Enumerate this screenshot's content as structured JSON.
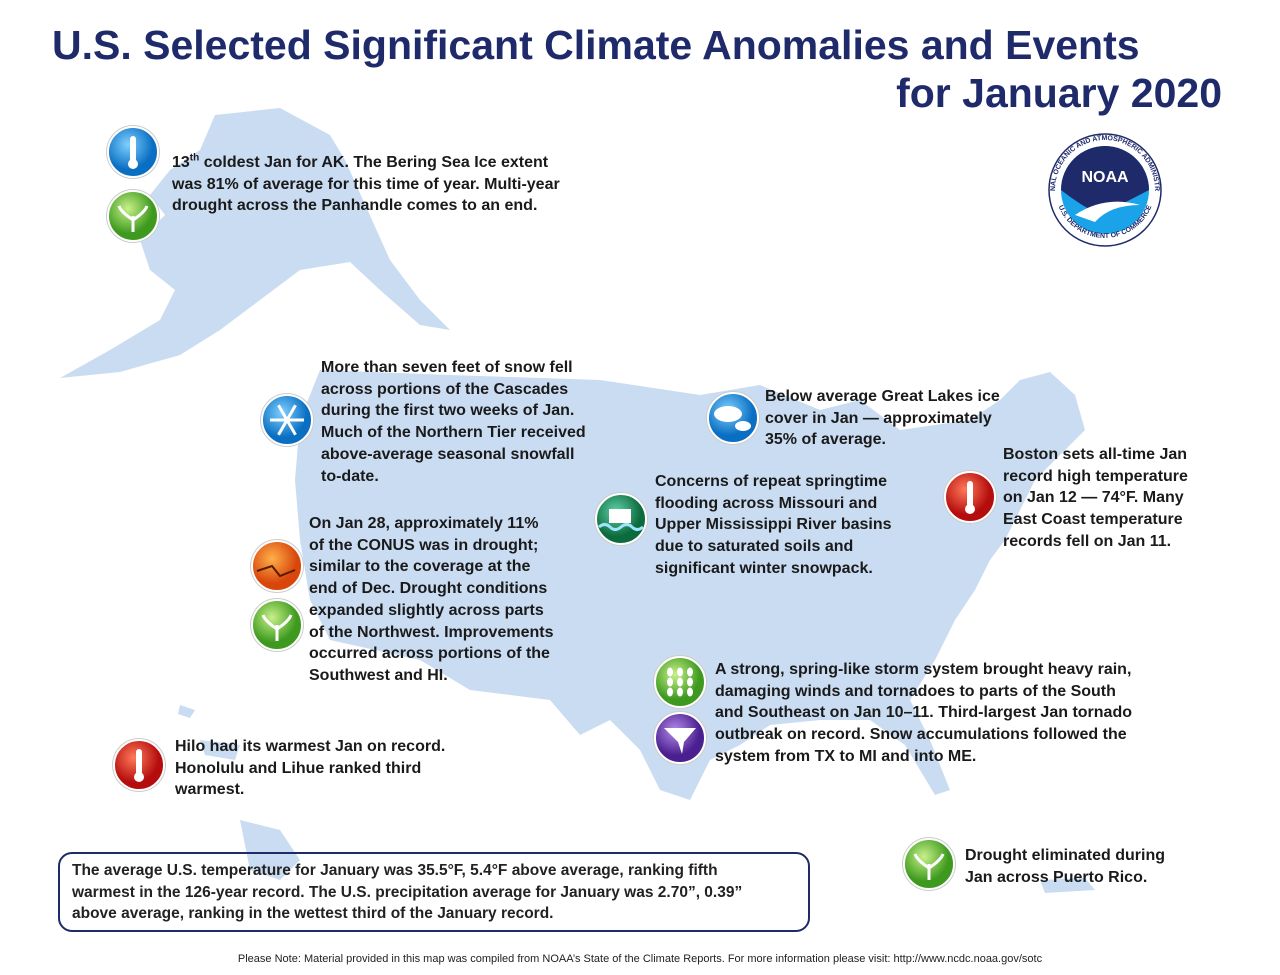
{
  "header": {
    "title_line1": "U.S. Selected Significant Climate Anomalies and Events",
    "title_line2": "for January 2020"
  },
  "logo": {
    "acronym": "NOAA",
    "agency": "NATIONAL OCEANIC AND ATMOSPHERIC ADMINISTRATION",
    "department": "U.S. DEPARTMENT OF COMMERCE"
  },
  "annotations": [
    {
      "ordinal": "13",
      "ordinal_suffix": "th",
      "lines": [
        " coldest Jan for AK. The Bering Sea Ice extent",
        "was 81% of average for this time of year. Multi-year",
        "drought across the Panhandle comes to an end."
      ]
    },
    {
      "lines": [
        "More than seven feet of snow fell",
        "across portions of the Cascades",
        "during the first two weeks of Jan.",
        "Much of the Northern Tier received",
        "above-average seasonal snowfall",
        "to-date."
      ]
    },
    {
      "lines": [
        "On Jan 28, approximately 11%",
        "of the CONUS was in drought;",
        "similar to the coverage at the",
        "end of Dec. Drought conditions",
        "expanded slightly across parts",
        "of the Northwest. Improvements",
        "occurred across portions of the",
        "Southwest and HI."
      ]
    },
    {
      "lines": [
        "Hilo had its warmest Jan on record.",
        "Honolulu and Lihue ranked third",
        "warmest."
      ]
    },
    {
      "lines": [
        "Below average Great Lakes ice",
        "cover in Jan — approximately",
        "35% of average."
      ]
    },
    {
      "lines": [
        "Concerns of repeat springtime",
        "flooding across Missouri and",
        "Upper Mississippi River basins",
        "due to saturated soils and",
        "significant winter snowpack."
      ]
    },
    {
      "lines": [
        "Boston sets all-time Jan",
        "record high temperature",
        "on Jan 12 — 74°F. Many",
        "East Coast temperature",
        "records fell on Jan 11."
      ]
    },
    {
      "lines": [
        "A strong, spring-like storm system brought heavy rain,",
        "damaging winds and tornadoes to parts of the South",
        "and Southeast on Jan 10–11. Third-largest Jan tornado",
        "outbreak on record. Snow accumulations followed the",
        "system from TX to MI and into ME."
      ]
    },
    {
      "lines": [
        "Drought eliminated during",
        "Jan across Puerto Rico."
      ]
    }
  ],
  "summary": {
    "lines": [
      "The average U.S. temperature for January was 35.5°F, 5.4°F above average, ranking fifth",
      "warmest in the 126-year record. The U.S. precipitation average for January was 2.70”, 0.39”",
      "above average, ranking in the wettest third of the January record."
    ]
  },
  "footnote": "Please Note: Material provided in this map was compiled from NOAA’s State of the Climate Reports. For more information please visit: http://www.ncdc.noaa.gov/sotc"
}
